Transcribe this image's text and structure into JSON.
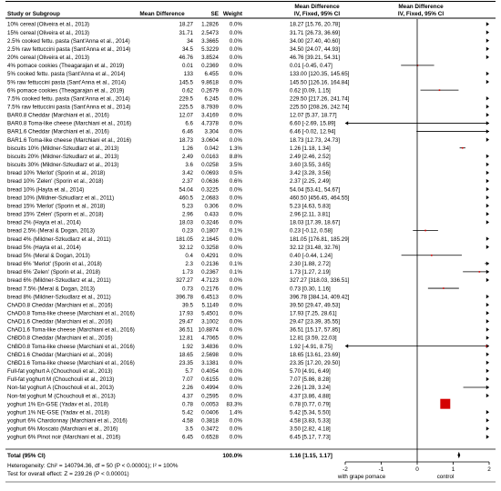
{
  "chart_data": {
    "type": "forest",
    "columns": {
      "study": "Study or Subgroup",
      "md": "Mean Difference",
      "se": "SE",
      "weight": "Weight",
      "ci": "Mean Difference",
      "ci_sub": "IV, Fixed, 95% CI",
      "plot": "Mean Difference",
      "plot_sub": "IV, Fixed, 95% CI"
    },
    "rows": [
      {
        "study": "10% cereal (Oliveira et al., 2013)",
        "md": "18.27",
        "se": "1.2826",
        "weight": "0.0%",
        "ci": "18.27 [15.76, 20.78]",
        "est": 18.27,
        "lo": 15.76,
        "hi": 20.78
      },
      {
        "study": "15% cereal (Oliveira et al., 2013)",
        "md": "31.71",
        "se": "2.5473",
        "weight": "0.0%",
        "ci": "31.71 [26.73, 36.69]",
        "est": 31.71,
        "lo": 26.73,
        "hi": 36.69
      },
      {
        "study": "2.5% cooked fettu. pasta (Sant'Anna et al., 2014)",
        "md": "34",
        "se": "3.3665",
        "weight": "0.0%",
        "ci": "34.00 [27.40, 40.60]",
        "est": 34.0,
        "lo": 27.4,
        "hi": 40.6
      },
      {
        "study": "2.5% raw fettuccini pasta (Sant'Anna et al., 2014)",
        "md": "34.5",
        "se": "5.3229",
        "weight": "0.0%",
        "ci": "34.50 [24.07, 44.93]",
        "est": 34.5,
        "lo": 24.07,
        "hi": 44.93
      },
      {
        "study": "20% cereal (Oliveira et al., 2013)",
        "md": "46.76",
        "se": "3.8524",
        "weight": "0.0%",
        "ci": "46.76 [39.21, 54.31]",
        "est": 46.76,
        "lo": 39.21,
        "hi": 54.31
      },
      {
        "study": "4% pomace cookies (Theagarajan et al., 2019)",
        "md": "0.01",
        "se": "0.2369",
        "weight": "0.0%",
        "ci": "0.01 [-0.45, 0.47]",
        "est": 0.01,
        "lo": -0.45,
        "hi": 0.47
      },
      {
        "study": "5% cooked fettu. pasta (Sant'Anna et al., 2014)",
        "md": "133",
        "se": "6.455",
        "weight": "0.0%",
        "ci": "133.00 [120.35, 145.65]",
        "est": 133.0,
        "lo": 120.35,
        "hi": 145.65
      },
      {
        "study": "5% raw fettuccini pasta (Sant'Anna et al., 2014)",
        "md": "145.5",
        "se": "9.8618",
        "weight": "0.0%",
        "ci": "145.50 [126.16, 164.84]",
        "est": 145.5,
        "lo": 126.16,
        "hi": 164.84
      },
      {
        "study": "6% pomace cookies (Theagarajan et al., 2019)",
        "md": "0.62",
        "se": "0.2679",
        "weight": "0.0%",
        "ci": "0.62 [0.09, 1.15]",
        "est": 0.62,
        "lo": 0.09,
        "hi": 1.15
      },
      {
        "study": "7.5% cooked fettu. pasta (Sant'Anna et al., 2014)",
        "md": "229.5",
        "se": "6.245",
        "weight": "0.0%",
        "ci": "229.50 [217.26, 241.74]",
        "est": 229.5,
        "lo": 217.26,
        "hi": 241.74
      },
      {
        "study": "7.5% raw fettuccini pasta (Sant'Anna et al., 2014)",
        "md": "225.5",
        "se": "8.7939",
        "weight": "0.0%",
        "ci": "225.50 [208.26, 242.74]",
        "est": 225.5,
        "lo": 208.26,
        "hi": 242.74
      },
      {
        "study": "BAR0.8 Cheddar (Marchiani et al., 2016)",
        "md": "12.07",
        "se": "3.4169",
        "weight": "0.0%",
        "ci": "12.07 [5.37, 18.77]",
        "est": 12.07,
        "lo": 5.37,
        "hi": 18.77
      },
      {
        "study": "BAR0.8 Toma-like cheese (Marchiani et al., 2016)",
        "md": "6.6",
        "se": "4.7378",
        "weight": "0.0%",
        "ci": "6.60 [-2.69, 15.89]",
        "est": 6.6,
        "lo": -2.69,
        "hi": 15.89
      },
      {
        "study": "BAR1.6 Cheddar (Marchiani et al., 2016)",
        "md": "6.46",
        "se": "3.304",
        "weight": "0.0%",
        "ci": "6.46 [-0.02, 12.94]",
        "est": 6.46,
        "lo": -0.02,
        "hi": 12.94
      },
      {
        "study": "BAR1.6 Toma-like cheese (Marchiani et al., 2016)",
        "md": "18.73",
        "se": "3.0604",
        "weight": "0.0%",
        "ci": "18.73 [12.73, 24.73]",
        "est": 18.73,
        "lo": 12.73,
        "hi": 24.73
      },
      {
        "study": "biscuits 10% (Mildner-Szkudlarz et al., 2013)",
        "md": "1.26",
        "se": "0.042",
        "weight": "1.3%",
        "ci": "1.26 [1.18, 1.34]",
        "est": 1.26,
        "lo": 1.18,
        "hi": 1.34
      },
      {
        "study": "biscuits 20% (Mildner-Szkudlarz et al., 2013)",
        "md": "2.49",
        "se": "0.0163",
        "weight": "8.8%",
        "ci": "2.49 [2.46, 2.52]",
        "est": 2.49,
        "lo": 2.46,
        "hi": 2.52
      },
      {
        "study": "biscuits 30% (Mildner-Szkudlarz et al., 2013)",
        "md": "3.6",
        "se": "0.0258",
        "weight": "3.5%",
        "ci": "3.60 [3.55, 3.65]",
        "est": 3.6,
        "lo": 3.55,
        "hi": 3.65
      },
      {
        "study": "bread 10% 'Merlot' (Sporin et al., 2018)",
        "md": "3.42",
        "se": "0.0693",
        "weight": "0.5%",
        "ci": "3.42 [3.28, 3.56]",
        "est": 3.42,
        "lo": 3.28,
        "hi": 3.56
      },
      {
        "study": "bread 10% 'Zelen' (Sporin et al., 2018)",
        "md": "2.37",
        "se": "0.0636",
        "weight": "0.6%",
        "ci": "2.37 [2.25, 2.49]",
        "est": 2.37,
        "lo": 2.25,
        "hi": 2.49
      },
      {
        "study": "bread 10% (Hayta et al., 2014)",
        "md": "54.04",
        "se": "0.3225",
        "weight": "0.0%",
        "ci": "54.04 [53.41, 54.67]",
        "est": 54.04,
        "lo": 53.41,
        "hi": 54.67
      },
      {
        "study": "bread 10% (Mildner-Szkudlarz et al., 2011)",
        "md": "460.5",
        "se": "2.0683",
        "weight": "0.0%",
        "ci": "460.50 [456.45, 464.55]",
        "est": 460.5,
        "lo": 456.45,
        "hi": 464.55
      },
      {
        "study": "bread 15% 'Merlot' (Sporin et al., 2018)",
        "md": "5.23",
        "se": "0.306",
        "weight": "0.0%",
        "ci": "5.23 [4.63, 5.83]",
        "est": 5.23,
        "lo": 4.63,
        "hi": 5.83
      },
      {
        "study": "bread 15% 'Zelen' (Sporin et al., 2018)",
        "md": "2.96",
        "se": "0.433",
        "weight": "0.0%",
        "ci": "2.96 [2.11, 3.81]",
        "est": 2.96,
        "lo": 2.11,
        "hi": 3.81
      },
      {
        "study": "bread 2% (Hayta et al., 2014)",
        "md": "18.03",
        "se": "0.3246",
        "weight": "0.0%",
        "ci": "18.03 [17.39, 18.67]",
        "est": 18.03,
        "lo": 17.39,
        "hi": 18.67
      },
      {
        "study": "bread 2.5% (Meral & Dogan, 2013)",
        "md": "0.23",
        "se": "0.1807",
        "weight": "0.1%",
        "ci": "0.23 [-0.12, 0.58]",
        "est": 0.23,
        "lo": -0.12,
        "hi": 0.58
      },
      {
        "study": "bread 4% (Mildner-Szkudlarz et al., 2011)",
        "md": "181.05",
        "se": "2.1645",
        "weight": "0.0%",
        "ci": "181.05 [176.81, 185.29]",
        "est": 181.05,
        "lo": 176.81,
        "hi": 185.29
      },
      {
        "study": "bread 5% (Hayta et al., 2014)",
        "md": "32.12",
        "se": "0.3258",
        "weight": "0.0%",
        "ci": "32.12 [31.48, 32.76]",
        "est": 32.12,
        "lo": 31.48,
        "hi": 32.76
      },
      {
        "study": "bread 5% (Meral & Dogan, 2013)",
        "md": "0.4",
        "se": "0.4291",
        "weight": "0.0%",
        "ci": "0.40 [-0.44, 1.24]",
        "est": 0.4,
        "lo": -0.44,
        "hi": 1.24
      },
      {
        "study": "bread 6% 'Merlot' (Sporin et al., 2018)",
        "md": "2.3",
        "se": "0.2136",
        "weight": "0.1%",
        "ci": "2.30 [1.88, 2.72]",
        "est": 2.3,
        "lo": 1.88,
        "hi": 2.72
      },
      {
        "study": "bread 6% 'Zelen' (Sporin et al., 2018)",
        "md": "1.73",
        "se": "0.2367",
        "weight": "0.1%",
        "ci": "1.73 [1.27, 2.19]",
        "est": 1.73,
        "lo": 1.27,
        "hi": 2.19
      },
      {
        "study": "bread 6% (Mildner-Szkudlarz et al., 2011)",
        "md": "327.27",
        "se": "4.7123",
        "weight": "0.0%",
        "ci": "327.27 [318.03, 336.51]",
        "est": 327.27,
        "lo": 318.03,
        "hi": 336.51
      },
      {
        "study": "bread 7.5% (Meral & Dogan, 2013)",
        "md": "0.73",
        "se": "0.2176",
        "weight": "0.0%",
        "ci": "0.73 [0.30, 1.16]",
        "est": 0.73,
        "lo": 0.3,
        "hi": 1.16
      },
      {
        "study": "bread 8% (Mildner-Szkudlarz et al., 2011)",
        "md": "396.78",
        "se": "6.4513",
        "weight": "0.0%",
        "ci": "396.78 [384.14, 409.42]",
        "est": 396.78,
        "lo": 384.14,
        "hi": 409.42
      },
      {
        "study": "ChAD0.8 Cheddar (Marchiani et al., 2016)",
        "md": "39.5",
        "se": "5.1149",
        "weight": "0.0%",
        "ci": "39.50 [29.47, 49.53]",
        "est": 39.5,
        "lo": 29.47,
        "hi": 49.53
      },
      {
        "study": "ChAD0.8 Toma-like cheese (Marchiani et al., 2016)",
        "md": "17.93",
        "se": "5.4501",
        "weight": "0.0%",
        "ci": "17.93 [7.25, 28.61]",
        "est": 17.93,
        "lo": 7.25,
        "hi": 28.61
      },
      {
        "study": "ChAD1.6 Cheddar (Marchiani et al., 2016)",
        "md": "29.47",
        "se": "3.1002",
        "weight": "0.0%",
        "ci": "29.47 [23.39, 35.55]",
        "est": 29.47,
        "lo": 23.39,
        "hi": 35.55
      },
      {
        "study": "ChAD1.6 Toma-like cheese (Marchiani et al., 2016)",
        "md": "36.51",
        "se": "10.8874",
        "weight": "0.0%",
        "ci": "36.51 [15.17, 57.85]",
        "est": 36.51,
        "lo": 15.17,
        "hi": 57.85
      },
      {
        "study": "ChBD0.8 Cheddar (Marchiani et al., 2016)",
        "md": "12.81",
        "se": "4.7065",
        "weight": "0.0%",
        "ci": "12.81 [3.59, 22.03]",
        "est": 12.81,
        "lo": 3.59,
        "hi": 22.03
      },
      {
        "study": "ChBD0.8 Toma-like cheese (Marchiani et al., 2016)",
        "md": "1.92",
        "se": "3.4836",
        "weight": "0.0%",
        "ci": "1.92 [-4.91, 8.75]",
        "est": 1.92,
        "lo": -4.91,
        "hi": 8.75
      },
      {
        "study": "ChBD1.6 Cheddar (Marchiani et al., 2016)",
        "md": "18.65",
        "se": "2.5698",
        "weight": "0.0%",
        "ci": "18.65 [13.61, 23.69]",
        "est": 18.65,
        "lo": 13.61,
        "hi": 23.69
      },
      {
        "study": "ChBD1.6 Toma-like cheese (Marchiani et al., 2016)",
        "md": "23.35",
        "se": "3.1381",
        "weight": "0.0%",
        "ci": "23.35 [17.20, 29.50]",
        "est": 23.35,
        "lo": 17.2,
        "hi": 29.5
      },
      {
        "study": "Full-fat yoghurt A (Chouchouli et al., 2013)",
        "md": "5.7",
        "se": "0.4054",
        "weight": "0.0%",
        "ci": "5.70 [4.91, 6.49]",
        "est": 5.7,
        "lo": 4.91,
        "hi": 6.49
      },
      {
        "study": "Full-fat yoghurt M (Chouchouli et al., 2013)",
        "md": "7.07",
        "se": "0.6155",
        "weight": "0.0%",
        "ci": "7.07 [5.86, 8.28]",
        "est": 7.07,
        "lo": 5.86,
        "hi": 8.28
      },
      {
        "study": "Non-fat yoghurt A (Chouchouli et al., 2013)",
        "md": "2.26",
        "se": "0.4994",
        "weight": "0.0%",
        "ci": "2.26 [1.28, 3.24]",
        "est": 2.26,
        "lo": 1.28,
        "hi": 3.24
      },
      {
        "study": "Non-fat yoghurt M (Chouchouli et al., 2013)",
        "md": "4.37",
        "se": "0.2595",
        "weight": "0.0%",
        "ci": "4.37 [3.86, 4.88]",
        "est": 4.37,
        "lo": 3.86,
        "hi": 4.88
      },
      {
        "study": "yoghurt 1% En-GSE (Yadav et al., 2018)",
        "md": "0.78",
        "se": "0.0053",
        "weight": "83.3%",
        "ci": "0.78 [0.77, 0.79]",
        "est": 0.78,
        "lo": 0.77,
        "hi": 0.79
      },
      {
        "study": "yoghurt 1% NE-GSE (Yadav et al., 2018)",
        "md": "5.42",
        "se": "0.0406",
        "weight": "1.4%",
        "ci": "5.42 [5.34, 5.50]",
        "est": 5.42,
        "lo": 5.34,
        "hi": 5.5
      },
      {
        "study": "yoghurt 6% Chardonnay (Marchiani et al., 2016)",
        "md": "4.58",
        "se": "0.3818",
        "weight": "0.0%",
        "ci": "4.58 [3.83, 5.33]",
        "est": 4.58,
        "lo": 3.83,
        "hi": 5.33
      },
      {
        "study": "yoghurt 6% Moscato (Marchiani et al., 2016)",
        "md": "3.5",
        "se": "0.3472",
        "weight": "0.0%",
        "ci": "3.50 [2.82, 4.18]",
        "est": 3.5,
        "lo": 2.82,
        "hi": 4.18
      },
      {
        "study": "yoghurt 6% Pinot noir (Marchiani et al., 2016)",
        "md": "6.45",
        "se": "0.6528",
        "weight": "0.0%",
        "ci": "6.45 [5.17, 7.73]",
        "est": 6.45,
        "lo": 5.17,
        "hi": 7.73
      }
    ],
    "total": {
      "study": "Total (95% CI)",
      "weight": "100.0%",
      "ci": "1.16 [1.15, 1.17]",
      "est": 1.16,
      "lo": 1.15,
      "hi": 1.17
    },
    "heterogeneity": "Heterogeneity: Chi² = 140794.36, df = 50 (P < 0.00001); I² = 100%",
    "overall_effect": "Test for overall effect: Z = 239.26 (P < 0.00001)",
    "xlim": [
      -2,
      2
    ],
    "x_ticks": [
      "-2",
      "-1",
      "0",
      "1",
      "2"
    ],
    "x_tick_values": [
      -2,
      -1,
      0,
      1,
      2
    ],
    "favours_left": "with grape pomace",
    "favours_right": "control",
    "colors": {
      "square": "#d40000",
      "diamond": "#000000",
      "line": "#000000"
    }
  }
}
